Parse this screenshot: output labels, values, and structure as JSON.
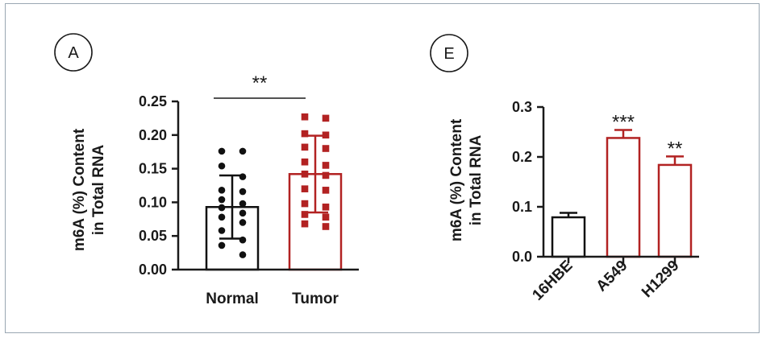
{
  "chart_data": [
    {
      "type": "bar",
      "panel_label": "A",
      "ylabel_line1": "m6A (%) Content",
      "ylabel_line2": "in Total RNA",
      "ylim": [
        0,
        0.25
      ],
      "yticks": [
        "0.00",
        "0.05",
        "0.10",
        "0.15",
        "0.20",
        "0.25"
      ],
      "categories": [
        "Normal",
        "Tumor"
      ],
      "values": [
        0.093,
        0.142
      ],
      "errors": [
        0.047,
        0.057
      ],
      "bar_colors": [
        "#111111",
        "#b22222"
      ],
      "points": [
        [
          0.176,
          0.176,
          0.154,
          0.138,
          0.118,
          0.116,
          0.104,
          0.098,
          0.092,
          0.084,
          0.078,
          0.07,
          0.058,
          0.044,
          0.036,
          0.022
        ],
        [
          0.227,
          0.225,
          0.202,
          0.2,
          0.182,
          0.18,
          0.16,
          0.155,
          0.142,
          0.14,
          0.12,
          0.118,
          0.098,
          0.093,
          0.082,
          0.078,
          0.068,
          0.064
        ]
      ],
      "significance": "**"
    },
    {
      "type": "bar",
      "panel_label": "E",
      "ylabel_line1": "m6A (%) Content",
      "ylabel_line2": "in Total RNA",
      "ylim": [
        0,
        0.3
      ],
      "yticks": [
        "0.0",
        "0.1",
        "0.2",
        "0.3"
      ],
      "categories": [
        "16HBE",
        "A549",
        "H1299"
      ],
      "values": [
        0.079,
        0.238,
        0.184
      ],
      "errors": [
        0.009,
        0.016,
        0.017
      ],
      "bar_colors": [
        "#111111",
        "#b22222",
        "#b22222"
      ],
      "significance": [
        "",
        "***",
        "**"
      ]
    }
  ]
}
